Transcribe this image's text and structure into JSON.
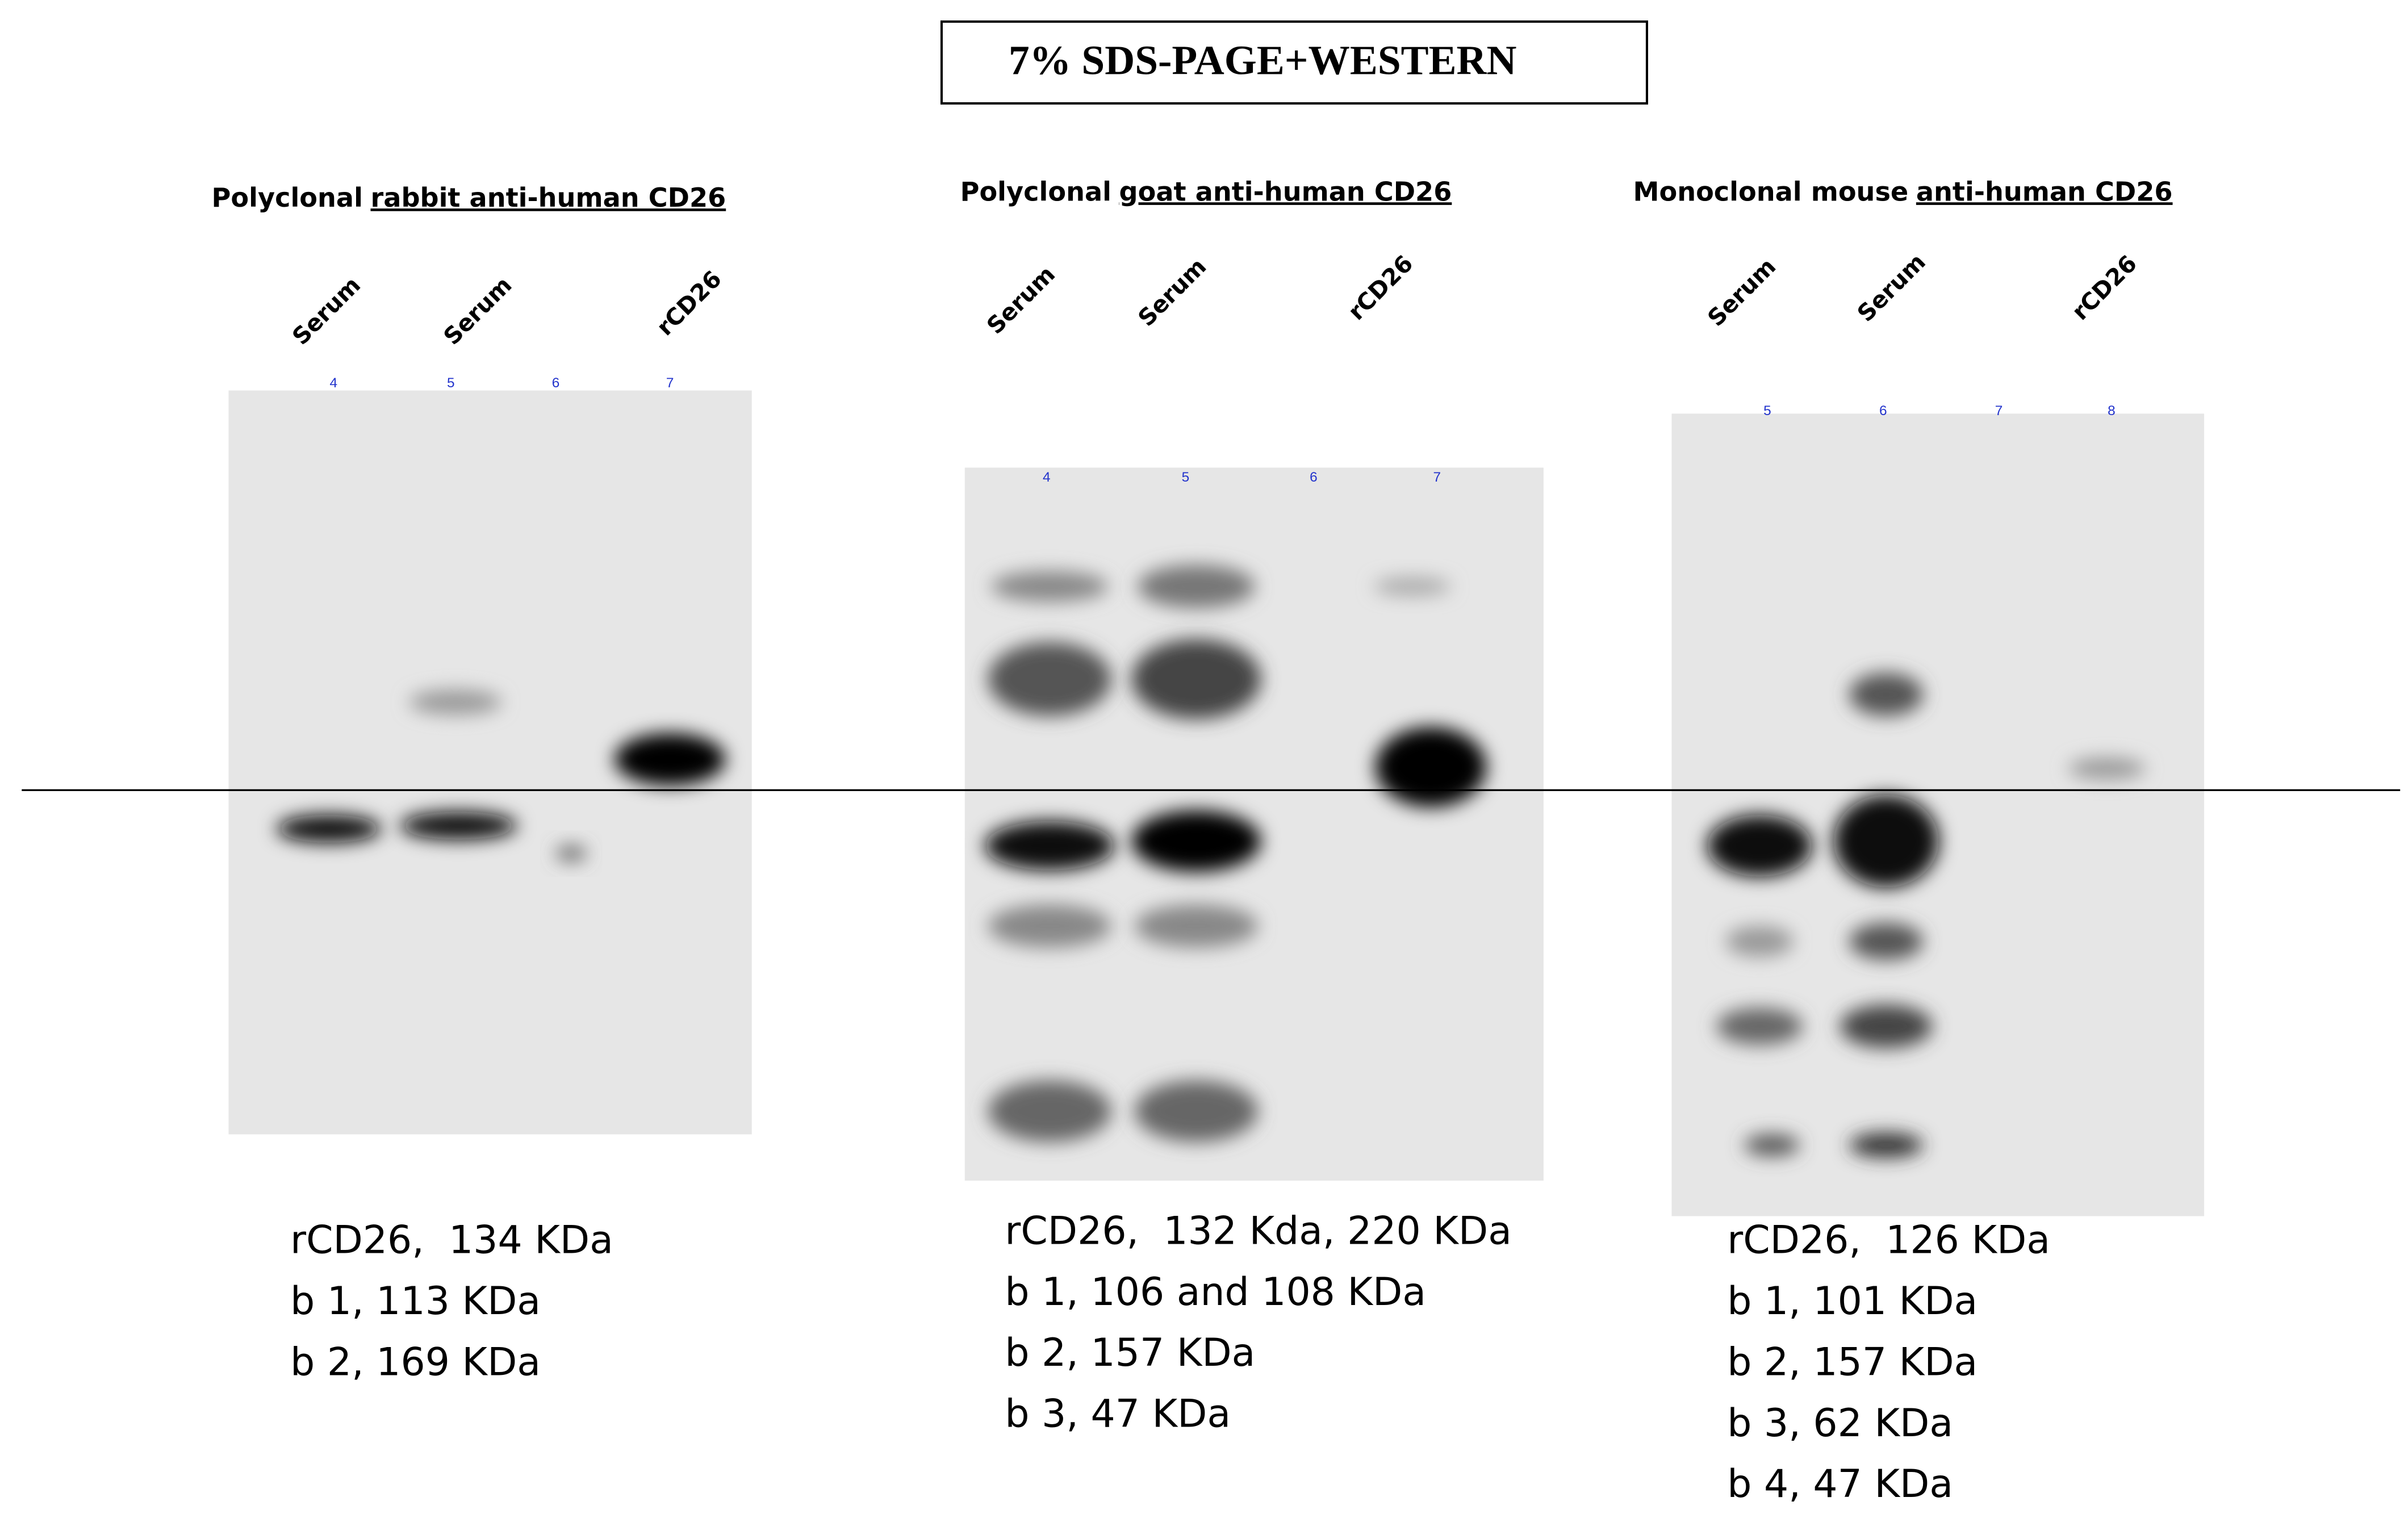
{
  "title": "7% SDS-PAGE+WESTERN",
  "panels": [
    {
      "heading": {
        "prefix": "Polyclonal",
        "underlined": "rabbit anti-human CD26"
      },
      "lane_labels": [
        "Serum",
        "Serum",
        "rCD26"
      ],
      "lane_numbers": [
        "4",
        "5",
        "6",
        "7"
      ],
      "notes": [
        "rCD26,  134 KDa",
        "b 1, 113 KDa",
        "b 2, 169 KDa"
      ]
    },
    {
      "heading": {
        "prefix": "Polyclonal",
        "underlined": "goat anti-human CD26"
      },
      "lane_labels": [
        "Serum",
        "Serum",
        "rCD26"
      ],
      "lane_numbers": [
        "4",
        "5",
        "6",
        "7"
      ],
      "notes": [
        "rCD26,  132 Kda, 220 KDa",
        "b 1, 106 and 108 KDa",
        "b 2, 157 KDa",
        "b 3, 47 KDa"
      ]
    },
    {
      "heading": {
        "prefix": "Monoclonal mouse",
        "underlined": "anti-human CD26"
      },
      "lane_labels": [
        "Serum",
        "Serum",
        "rCD26"
      ],
      "lane_numbers": [
        "5",
        "6",
        "7",
        "8"
      ],
      "notes": [
        "rCD26,  126 KDa",
        "b 1, 101 KDa",
        "b 2, 157 KDa",
        "b 3, 62 KDa",
        "b 4, 47 KDa"
      ]
    }
  ]
}
